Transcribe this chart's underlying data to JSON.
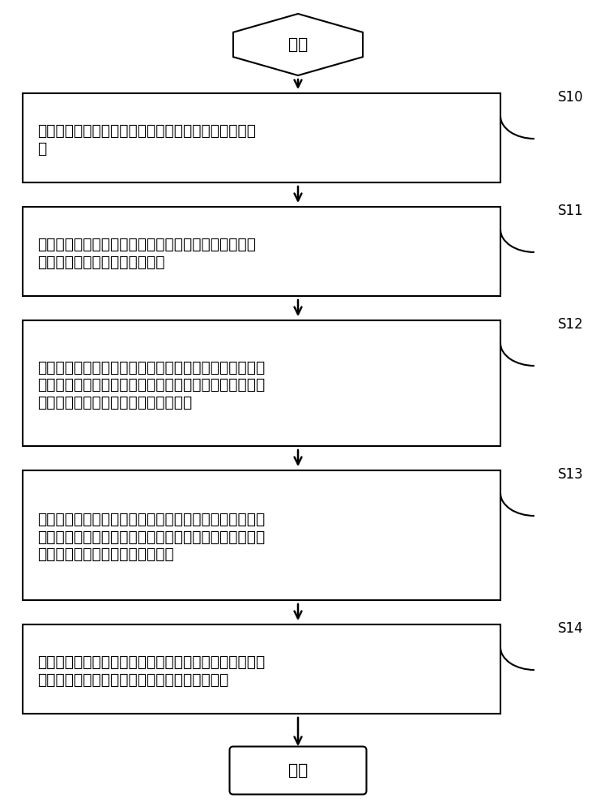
{
  "background_color": "#ffffff",
  "start_label": "开始",
  "end_label": "结束",
  "step_labels": [
    "S10",
    "S11",
    "S12",
    "S13",
    "S14"
  ],
  "box_texts": [
    "数据导入模块采集待展示的产品结构参数和工艺参数数据",
    "数据接收模块接收来自数据导入模块传送的数据，并发送给数据分析模块进行参数分析",
    "集成模块利用所述数据分析模块的分析结果构建待展示产品的虚拟的数字化模型；根据所述待展示产品的每个零部件三维参数，生成对应的虚拟零部件；",
    "价真模块运行所述集成模块建立的数字化模型，从而对待展示产品的产品性能、运转工艺进行价真分析，并按照工艺参数，按顺序执行每一工艺步骤",
    "动态展示模块存储经价真模块价真生成的各个工艺步骤的执行过程的影像，并对所述影像进行可视化展示"
  ],
  "box_line_breaks": [
    [
      "数据导入模块采集待展示的产品结构参数和工艺参数数",
      "据"
    ],
    [
      "数据接收模块接收来自数据导入模块传送的数据，并发",
      "送给数据分析模块进行参数分析"
    ],
    [
      "集成模块利用所述数据分析模块的分析结果构建待展示产",
      "品的虚拟的数字化模型；根据所述待展示产品的每个零部",
      "件三维参数，生成对应的虚拟零部件；"
    ],
    [
      "价真模块运行所述集成模块建立的数字化模型，从而对待",
      "展示产品的产品性能、运转工艺进行价真分析，并按照工",
      "艺参数，按顺序执行每一工艺步骤"
    ],
    [
      "动态展示模块存储经价真模块价真生成的各个工艺步骤的",
      "执行过程的影像，并对所述影像进行可视化展示"
    ]
  ],
  "fig_width": 7.36,
  "fig_height": 10.0
}
